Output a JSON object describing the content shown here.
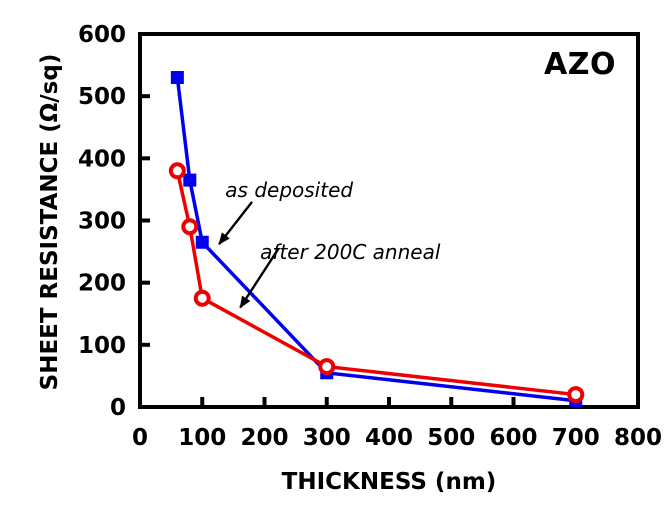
{
  "chart_data": {
    "type": "line",
    "title": "AZO",
    "xlabel": "THICKNESS (nm)",
    "ylabel": "SHEET RESISTANCE (Ω/sq)",
    "xlim": [
      0,
      800
    ],
    "ylim": [
      0,
      600
    ],
    "x_ticks": [
      0,
      100,
      200,
      300,
      400,
      500,
      600,
      700,
      800
    ],
    "y_ticks": [
      0,
      100,
      200,
      300,
      400,
      500,
      600
    ],
    "grid": false,
    "background": "#ffffff",
    "axis_color": "#000000",
    "series": [
      {
        "name": "as deposited",
        "color": "#0000EE",
        "marker": "filled-square",
        "x": [
          60,
          80,
          100,
          300,
          700
        ],
        "y": [
          530,
          365,
          265,
          55,
          10
        ]
      },
      {
        "name": "after 200C anneal",
        "color": "#EE0000",
        "marker": "open-circle",
        "x": [
          60,
          80,
          100,
          300,
          700
        ],
        "y": [
          380,
          290,
          175,
          65,
          20
        ]
      }
    ],
    "annotations": [
      {
        "text": "as deposited",
        "text_x": 137,
        "text_y": 338,
        "arrow_from_x": 180,
        "arrow_from_y": 330,
        "arrow_to_x": 127,
        "arrow_to_y": 262
      },
      {
        "text": "after 200C anneal",
        "text_x": 193,
        "text_y": 238,
        "arrow_from_x": 222,
        "arrow_from_y": 254,
        "arrow_to_x": 161,
        "arrow_to_y": 160
      }
    ]
  }
}
